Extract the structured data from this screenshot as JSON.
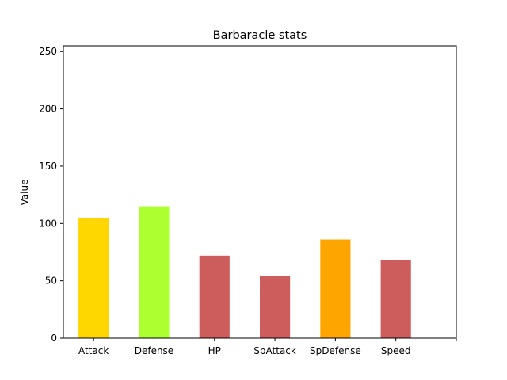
{
  "chart_data": {
    "type": "bar",
    "title": "Barbaracle stats",
    "xlabel": "",
    "ylabel": "Value",
    "categories": [
      "Attack",
      "Defense",
      "HP",
      "SpAttack",
      "SpDefense",
      "Speed"
    ],
    "values": [
      105,
      115,
      72,
      54,
      86,
      68
    ],
    "colors": [
      "#ffd700",
      "#adff2f",
      "#cd5c5c",
      "#cd5c5c",
      "#ffa500",
      "#cd5c5c"
    ],
    "ylim": [
      0,
      255
    ],
    "yticks": [
      0,
      50,
      100,
      150,
      200,
      250
    ],
    "grid": false,
    "legend": "none"
  }
}
